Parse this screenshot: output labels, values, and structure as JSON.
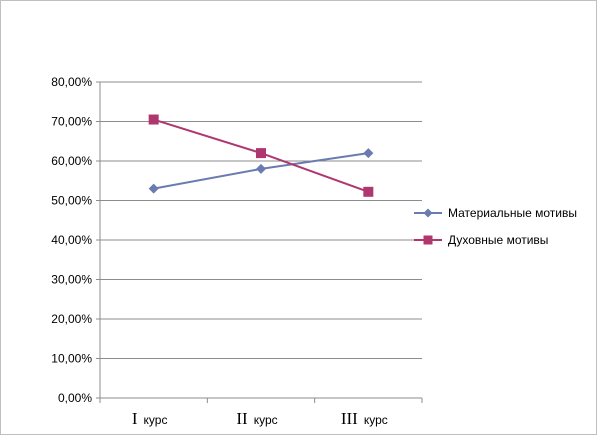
{
  "chart_data": {
    "type": "line",
    "title": "",
    "xlabel": "",
    "ylabel": "",
    "categories": [
      {
        "numeral": "I",
        "word": "курс"
      },
      {
        "numeral": "II",
        "word": "курс"
      },
      {
        "numeral": "III",
        "word": "курс"
      }
    ],
    "ylim": [
      0,
      80
    ],
    "yticks": [
      "0,00%",
      "10,00%",
      "20,00%",
      "30,00%",
      "40,00%",
      "50,00%",
      "60,00%",
      "70,00%",
      "80,00%"
    ],
    "grid": true,
    "legend_position": "right",
    "series": [
      {
        "name": "Материальные мотивы",
        "values": [
          53,
          58,
          62
        ],
        "color": "#6a7bb0",
        "marker": "diamond"
      },
      {
        "name": "Духовные мотивы",
        "values": [
          70.5,
          62,
          52.2
        ],
        "color": "#b03670",
        "marker": "square"
      }
    ]
  }
}
